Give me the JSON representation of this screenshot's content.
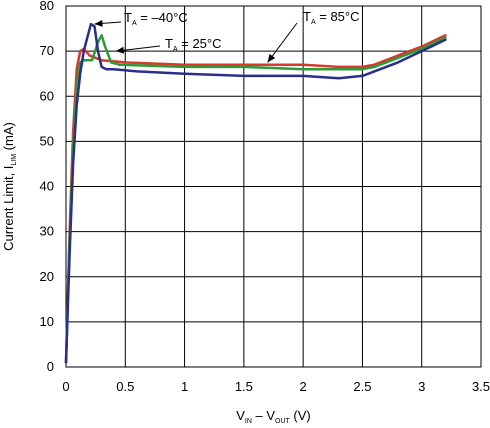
{
  "chart_data": {
    "type": "line",
    "xlabel": {
      "main": "V",
      "sub1": "IN",
      "mid": " – V",
      "sub2": "OUT",
      "tail": " (V)"
    },
    "ylabel": {
      "main": "Current Limit, I",
      "sub": "LIM",
      "tail": " (mA)"
    },
    "xlim": [
      0,
      3.5
    ],
    "ylim": [
      0,
      80
    ],
    "xticks": [
      "0",
      "0.5",
      "1",
      "1.5",
      "2",
      "2.5",
      "3",
      "3.5"
    ],
    "yticks": [
      "0",
      "10",
      "20",
      "30",
      "40",
      "50",
      "60",
      "70",
      "80"
    ],
    "grid": true,
    "series": [
      {
        "name": "TA = 85°C",
        "color": "#d73a2a",
        "x": [
          0.0,
          0.03,
          0.06,
          0.09,
          0.12,
          0.15,
          0.2,
          0.3,
          0.5,
          1.0,
          1.5,
          2.0,
          2.3,
          2.5,
          2.6,
          2.8,
          3.0,
          3.2
        ],
        "y": [
          1,
          30,
          52,
          66,
          70,
          70.5,
          69,
          68,
          67.5,
          67,
          67,
          67,
          66.5,
          66.5,
          67,
          69,
          71,
          73.5
        ]
      },
      {
        "name": "TA = 25°C",
        "color": "#2f9a3a",
        "x": [
          0.0,
          0.03,
          0.06,
          0.09,
          0.12,
          0.15,
          0.22,
          0.27,
          0.3,
          0.33,
          0.38,
          0.45,
          1.0,
          1.5,
          2.0,
          2.5,
          2.6,
          2.8,
          3.0,
          3.2
        ],
        "y": [
          1,
          28,
          48,
          62,
          67.5,
          68,
          68,
          72,
          73.5,
          71,
          67.5,
          67,
          66.5,
          66.5,
          66,
          66,
          66.5,
          68.5,
          70.5,
          73
        ]
      },
      {
        "name": "TA = –40°C",
        "color": "#2a2f8c",
        "x": [
          0.0,
          0.03,
          0.06,
          0.09,
          0.12,
          0.15,
          0.18,
          0.21,
          0.24,
          0.27,
          0.3,
          0.34,
          0.4,
          0.6,
          1.0,
          1.5,
          2.0,
          2.3,
          2.5,
          2.6,
          2.8,
          3.0,
          3.2
        ],
        "y": [
          1,
          25,
          45,
          58,
          65,
          70,
          73,
          76,
          75.5,
          70,
          66.5,
          66,
          66,
          65.5,
          65,
          64.5,
          64.5,
          64,
          64.5,
          65.5,
          67.5,
          70,
          72.5
        ]
      }
    ],
    "annotations": [
      {
        "pre": "T",
        "sub": "A",
        "post": " = –40°C",
        "series": 2,
        "tip_x": 0.24,
        "tip_y": 76
      },
      {
        "pre": "T",
        "sub": "A",
        "post": " = 25°C",
        "series": 1,
        "tip_x": 0.42,
        "tip_y": 70
      },
      {
        "pre": "T",
        "sub": "A",
        "post": " = 85°C",
        "series": 0,
        "tip_x": 1.7,
        "tip_y": 67.5
      }
    ]
  }
}
